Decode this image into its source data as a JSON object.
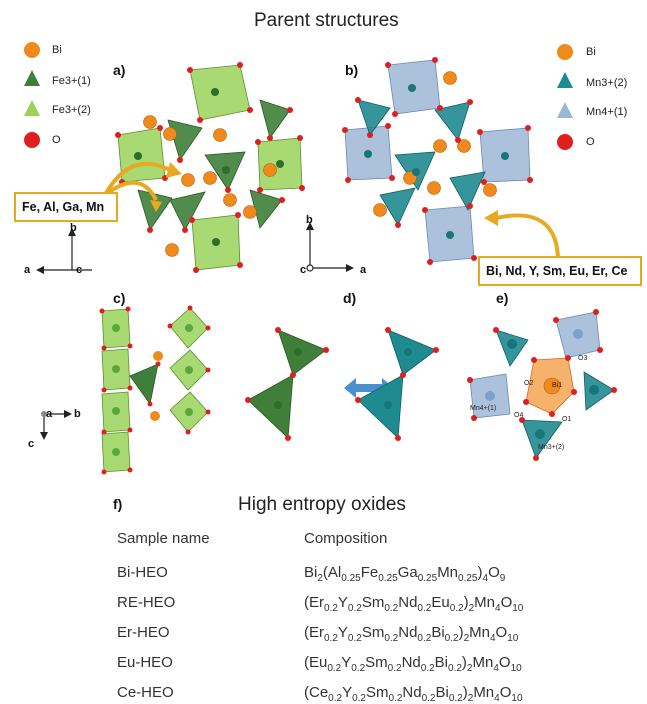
{
  "parent_title": "Parent structures",
  "panels": {
    "a": "a)",
    "b": "b)",
    "c": "c)",
    "d": "d)",
    "e": "e)",
    "f": "f)"
  },
  "legend_a": {
    "bi": "Bi",
    "fe1": "Fe3+(1)",
    "fe2": "Fe3+(2)",
    "o": "O"
  },
  "legend_b": {
    "bi": "Bi",
    "mn3": "Mn3+(2)",
    "mn4": "Mn4+(1)",
    "o": "O"
  },
  "callout_a": "Fe, Al, Ga, Mn",
  "callout_b": "Bi, Nd, Y, Sm, Eu, Er, Ce",
  "axes": {
    "a": "a",
    "b": "b",
    "c": "c"
  },
  "panel_e_labels": {
    "o1": "O1",
    "o2": "O2",
    "o3": "O3",
    "o4": "O4",
    "bi1": "Bi1",
    "mn4": "Mn4+(1)",
    "mn3": "Mn3+(2)"
  },
  "hea_title": "High entropy oxides",
  "table": {
    "headers": [
      "Sample name",
      "Composition"
    ],
    "rows": [
      {
        "name": "Bi-HEO",
        "parts": [
          [
            "Bi",
            ""
          ],
          [
            "2",
            "sub"
          ],
          [
            "(Al",
            ""
          ],
          [
            "0.25",
            "sub"
          ],
          [
            "Fe",
            ""
          ],
          [
            "0.25",
            "sub"
          ],
          [
            "Ga",
            ""
          ],
          [
            "0.25",
            "sub"
          ],
          [
            "Mn",
            ""
          ],
          [
            "0.25",
            "sub"
          ],
          [
            ")",
            ""
          ],
          [
            "4",
            "sub"
          ],
          [
            "O",
            ""
          ],
          [
            "9",
            "sub"
          ]
        ]
      },
      {
        "name": "RE-HEO",
        "parts": [
          [
            "(Er",
            ""
          ],
          [
            "0.2",
            "sub"
          ],
          [
            "Y",
            ""
          ],
          [
            "0.2",
            "sub"
          ],
          [
            "Sm",
            ""
          ],
          [
            "0.2",
            "sub"
          ],
          [
            "Nd",
            ""
          ],
          [
            "0.2",
            "sub"
          ],
          [
            "Eu",
            ""
          ],
          [
            "0.2",
            "sub"
          ],
          [
            ")",
            ""
          ],
          [
            "2",
            "sub"
          ],
          [
            "Mn",
            ""
          ],
          [
            "4",
            "sub"
          ],
          [
            "O",
            ""
          ],
          [
            "10",
            "sub"
          ]
        ]
      },
      {
        "name": "Er-HEO",
        "parts": [
          [
            "(Er",
            ""
          ],
          [
            "0.2",
            "sub"
          ],
          [
            "Y",
            ""
          ],
          [
            "0.2",
            "sub"
          ],
          [
            "Sm",
            ""
          ],
          [
            "0.2",
            "sub"
          ],
          [
            "Nd",
            ""
          ],
          [
            "0.2",
            "sub"
          ],
          [
            "Bi",
            ""
          ],
          [
            "0.2",
            "sub"
          ],
          [
            ")",
            ""
          ],
          [
            "2",
            "sub"
          ],
          [
            "Mn",
            ""
          ],
          [
            "4",
            "sub"
          ],
          [
            "O",
            ""
          ],
          [
            "10",
            "sub"
          ]
        ]
      },
      {
        "name": "Eu-HEO",
        "parts": [
          [
            "(Eu",
            ""
          ],
          [
            "0.2",
            "sub"
          ],
          [
            "Y",
            ""
          ],
          [
            "0.2",
            "sub"
          ],
          [
            "Sm",
            ""
          ],
          [
            "0.2",
            "sub"
          ],
          [
            "Nd",
            ""
          ],
          [
            "0.2",
            "sub"
          ],
          [
            "Bi",
            ""
          ],
          [
            "0.2",
            "sub"
          ],
          [
            ")",
            ""
          ],
          [
            "2",
            "sub"
          ],
          [
            "Mn",
            ""
          ],
          [
            "4",
            "sub"
          ],
          [
            "O",
            ""
          ],
          [
            "10",
            "sub"
          ]
        ]
      },
      {
        "name": "Ce-HEO",
        "parts": [
          [
            "(Ce",
            ""
          ],
          [
            "0.2",
            "sub"
          ],
          [
            "Y",
            ""
          ],
          [
            "0.2",
            "sub"
          ],
          [
            "Sm",
            ""
          ],
          [
            "0.2",
            "sub"
          ],
          [
            "Nd",
            ""
          ],
          [
            "0.2",
            "sub"
          ],
          [
            "Bi",
            ""
          ],
          [
            "0.2",
            "sub"
          ],
          [
            ")",
            ""
          ],
          [
            "2",
            "sub"
          ],
          [
            "Mn",
            ""
          ],
          [
            "4",
            "sub"
          ],
          [
            "O",
            ""
          ],
          [
            "10",
            "sub"
          ]
        ]
      }
    ]
  },
  "colors": {
    "bi": "#f08a1c",
    "fe1": "#3f7f3a",
    "fe2": "#9ad25a",
    "mn3": "#1f8a8f",
    "mn4": "#9cb6d6",
    "o": "#e01e1e",
    "callout": "#e8a820",
    "arrow": "#4a90d0"
  }
}
